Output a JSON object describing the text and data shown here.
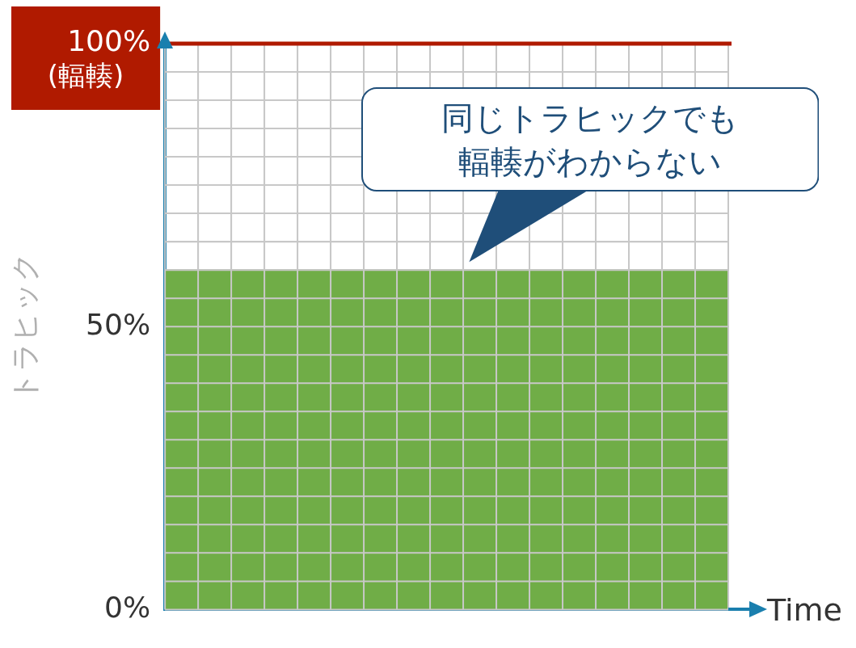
{
  "chart_data": {
    "type": "area",
    "xlabel": "Time",
    "ylabel": "トラヒック",
    "categories": [
      null,
      null,
      null,
      null,
      null,
      null,
      null,
      null,
      null,
      null,
      null,
      null,
      null,
      null,
      null,
      null,
      null,
      null
    ],
    "values": [
      60,
      60,
      60,
      60,
      60,
      60,
      60,
      60,
      60,
      60,
      60,
      60,
      60,
      60,
      60,
      60,
      60,
      60
    ],
    "color": "#70ad47",
    "ylim": [
      0,
      100
    ],
    "yticks": [
      {
        "value": 0,
        "label": "0%"
      },
      {
        "value": 5,
        "label": null
      },
      {
        "value": 10,
        "label": null
      },
      {
        "value": 15,
        "label": null
      },
      {
        "value": 20,
        "label": null
      },
      {
        "value": 25,
        "label": null
      },
      {
        "value": 30,
        "label": null
      },
      {
        "value": 35,
        "label": null
      },
      {
        "value": 40,
        "label": null
      },
      {
        "value": 45,
        "label": null
      },
      {
        "value": 50,
        "label": "50%"
      },
      {
        "value": 55,
        "label": null
      },
      {
        "value": 60,
        "label": null
      },
      {
        "value": 65,
        "label": null
      },
      {
        "value": 70,
        "label": null
      },
      {
        "value": 75,
        "label": null
      },
      {
        "value": 80,
        "label": null
      },
      {
        "value": 85,
        "label": null
      },
      {
        "value": 90,
        "label": null
      },
      {
        "value": 95,
        "label": null
      },
      {
        "value": 100,
        "label": "100%"
      }
    ],
    "grid": true,
    "tick_labels": "y",
    "ref_lines": [
      {
        "axis": "y",
        "value": 100,
        "label": "(輻輳)",
        "color": "#b01a00"
      }
    ],
    "annotations": [
      "同じトラヒックでも輻輳がわからない"
    ]
  }
}
